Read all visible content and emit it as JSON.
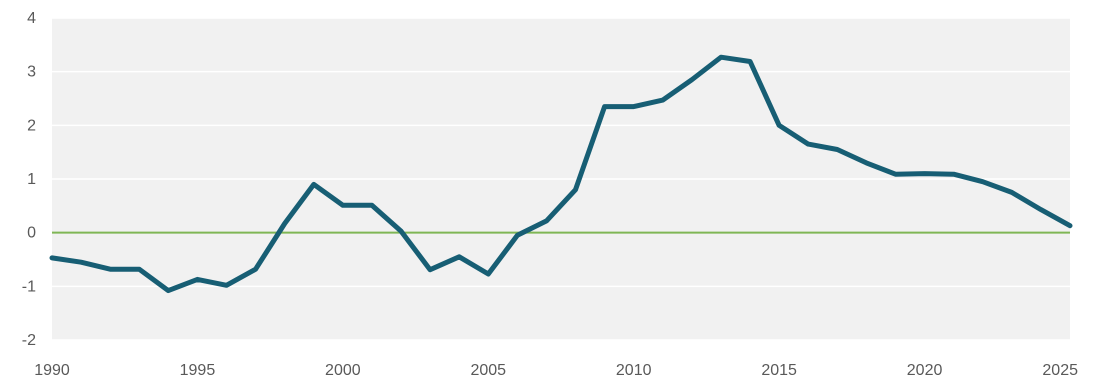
{
  "chart_data": {
    "type": "line",
    "title": "",
    "xlabel": "",
    "ylabel": "",
    "xlim": [
      1990,
      2025
    ],
    "ylim": [
      -2,
      4
    ],
    "grid": true,
    "x_ticks": [
      "1990",
      "1995",
      "2000",
      "2005",
      "2010",
      "2015",
      "2020",
      "2025"
    ],
    "y_ticks": [
      "-2",
      "-1",
      "0",
      "1",
      "2",
      "3",
      "4"
    ],
    "reference_line": {
      "y": 0,
      "color": "#7FB655"
    },
    "colors": {
      "series": "#175E74",
      "plot_background": "#F1F1F1",
      "grid": "#FFFFFF"
    },
    "series": [
      {
        "x": [
          1990,
          1991,
          1992,
          1993,
          1994,
          1995,
          1996,
          1997,
          1998,
          1999,
          2000,
          2001,
          2002,
          2003,
          2004,
          2005,
          2006,
          2007,
          2008,
          2009,
          2010,
          2011,
          2012,
          2013,
          2014,
          2015,
          2016,
          2017,
          2018,
          2019,
          2020,
          2021,
          2022,
          2023,
          2024,
          2025
        ],
        "values": [
          -0.47,
          -0.55,
          -0.68,
          -0.68,
          -1.08,
          -0.87,
          -0.98,
          -0.68,
          0.17,
          0.9,
          0.51,
          0.51,
          0.03,
          -0.69,
          -0.45,
          -0.77,
          -0.05,
          0.22,
          0.8,
          2.35,
          2.35,
          2.47,
          2.85,
          3.27,
          3.19,
          2.0,
          1.65,
          1.55,
          1.3,
          1.09,
          1.1,
          1.09,
          0.95,
          0.75,
          0.43,
          0.13
        ]
      }
    ]
  }
}
